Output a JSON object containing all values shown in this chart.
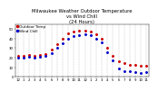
{
  "title": "Milwaukee Weather Outdoor Temperature\nvs Wind Chill\n(24 Hours)",
  "title_fontsize": 3.8,
  "background_color": "#ffffff",
  "grid_color": "#888888",
  "x_hours": [
    0,
    1,
    2,
    3,
    4,
    5,
    6,
    7,
    8,
    9,
    10,
    11,
    12,
    13,
    14,
    15,
    16,
    17,
    18,
    19,
    20,
    21,
    22,
    23
  ],
  "temp": [
    22,
    22,
    23,
    22,
    23,
    24,
    28,
    34,
    40,
    45,
    47,
    48,
    48,
    47,
    44,
    40,
    30,
    22,
    16,
    14,
    13,
    13,
    12,
    12
  ],
  "wind_chill": [
    20,
    20,
    21,
    20,
    21,
    22,
    25,
    30,
    35,
    40,
    42,
    43,
    44,
    43,
    40,
    36,
    26,
    17,
    9,
    6,
    6,
    5,
    4,
    5
  ],
  "temp_color": "#cc0000",
  "wc_color": "#0000cc",
  "dot_color": "#000000",
  "ylim_min": 0,
  "ylim_max": 55,
  "tick_fontsize": 2.8,
  "x_tick_labels": [
    "12",
    "1",
    "2",
    "3",
    "4",
    "5",
    "6",
    "7",
    "8",
    "9",
    "10",
    "11",
    "12",
    "1",
    "2",
    "3",
    "4",
    "5",
    "6",
    "7",
    "8",
    "9",
    "10",
    "11"
  ],
  "yticks": [
    0,
    10,
    20,
    30,
    40,
    50
  ],
  "legend_labels": [
    "Outdoor Temp",
    "Wind Chill"
  ],
  "legend_fontsize": 3.0,
  "markersize": 1.8
}
